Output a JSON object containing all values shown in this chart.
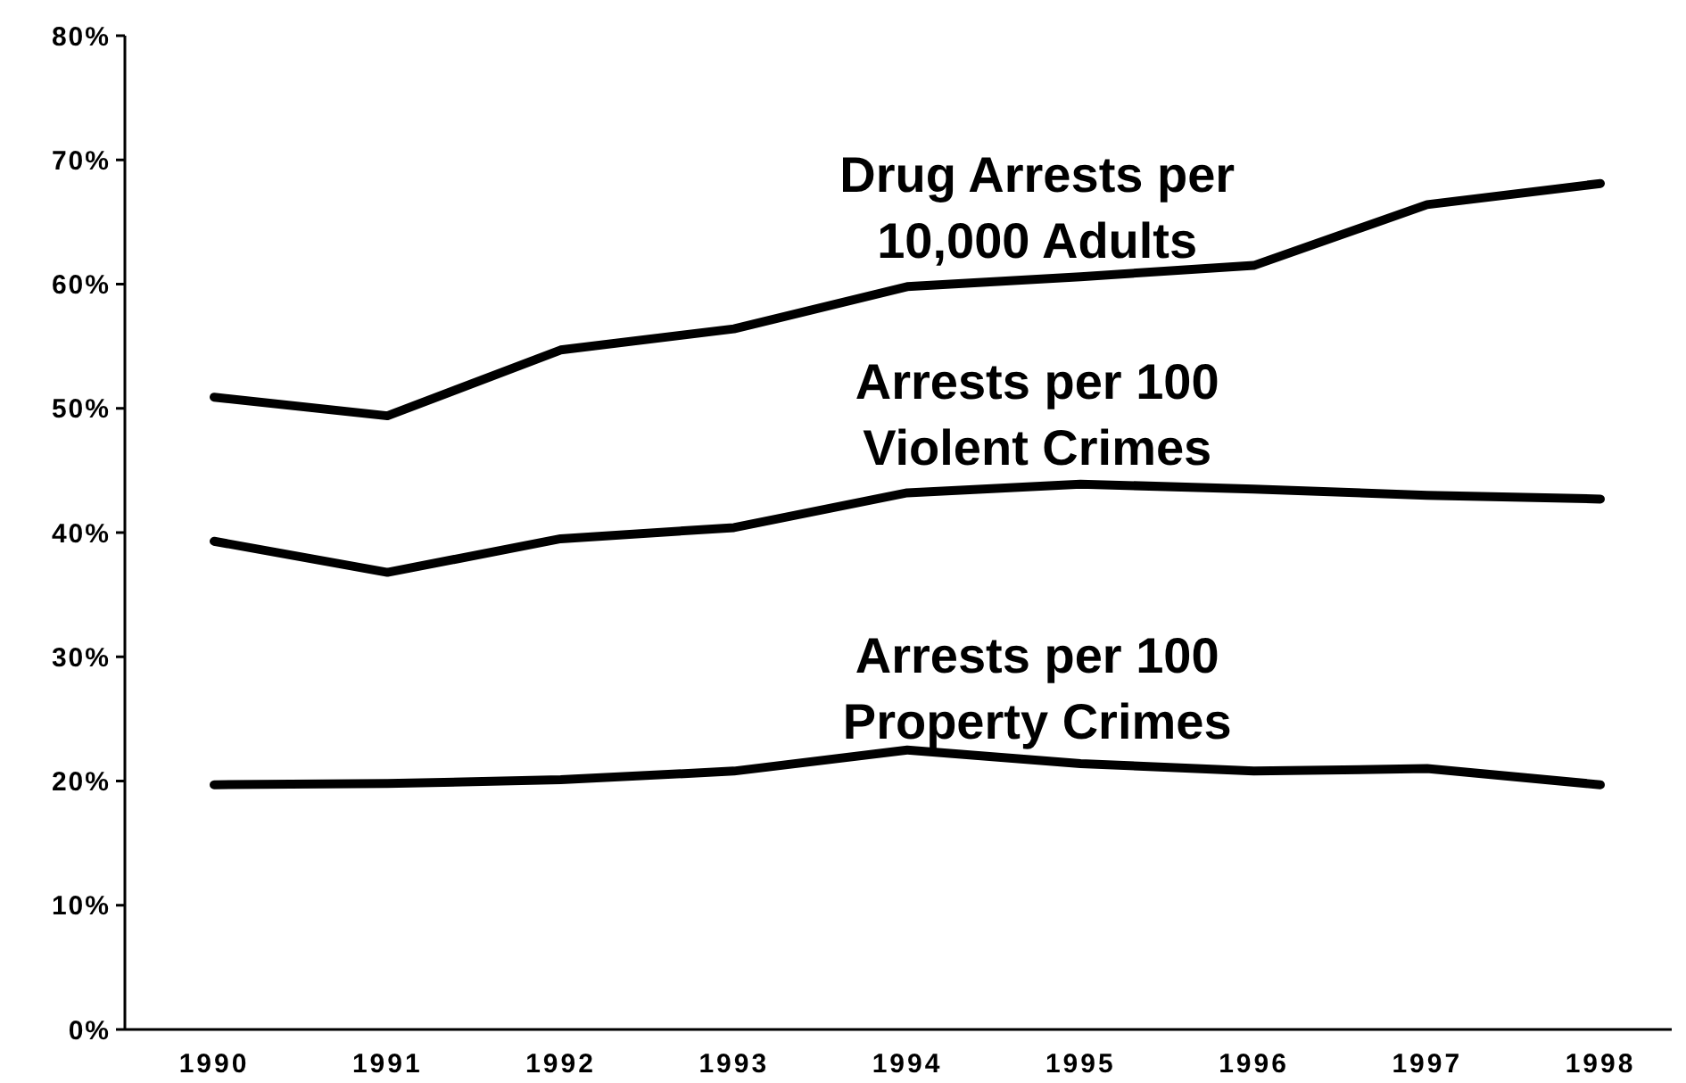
{
  "chart_data": {
    "type": "line",
    "categories": [
      "1990",
      "1991",
      "1992",
      "1993",
      "1994",
      "1995",
      "1996",
      "1997",
      "1998"
    ],
    "series": [
      {
        "name": "Drug Arrests per\n10,000 Adults",
        "color": "#000000",
        "values": [
          50.9,
          49.4,
          54.7,
          56.4,
          59.8,
          60.6,
          61.5,
          66.4,
          68.1
        ]
      },
      {
        "name": "Arrests per 100\nViolent Crimes",
        "color": "#000000",
        "values": [
          39.3,
          36.8,
          39.5,
          40.4,
          43.2,
          43.9,
          43.5,
          43.0,
          42.7
        ]
      },
      {
        "name": "Arrests per 100\nProperty Crimes",
        "color": "#000000",
        "values": [
          19.7,
          19.8,
          20.1,
          20.8,
          22.5,
          21.4,
          20.8,
          21.0,
          19.7
        ]
      }
    ],
    "ylim": [
      0,
      80
    ],
    "yticks": [
      {
        "value": 0,
        "label": "0%"
      },
      {
        "value": 10,
        "label": "10%"
      },
      {
        "value": 20,
        "label": "20%"
      },
      {
        "value": 30,
        "label": "30%"
      },
      {
        "value": 40,
        "label": "40%"
      },
      {
        "value": 50,
        "label": "50%"
      },
      {
        "value": 60,
        "label": "60%"
      },
      {
        "value": 70,
        "label": "70%"
      },
      {
        "value": 80,
        "label": "80%"
      }
    ],
    "grid": false,
    "marker": "none",
    "line_style": "solid"
  }
}
